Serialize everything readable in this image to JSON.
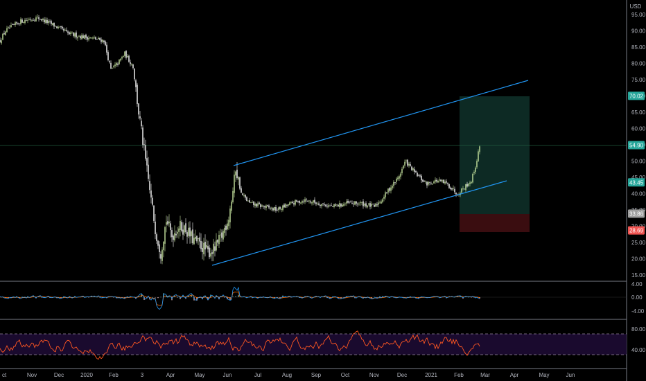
{
  "currency_label": "USD",
  "colors": {
    "background": "#000000",
    "up": "#c8e6a0",
    "down": "#ffffff",
    "channel": "#2196f3",
    "target_zone": "#0d2a24",
    "stop_zone": "#3a0d10",
    "last_price_badge": "#26a69a",
    "target_badge": "#26a69a",
    "entry_badge": "#9e9e9e",
    "stop_badge": "#ef5350",
    "macd_line": "#2196f3",
    "signal_line": "#ff6d00",
    "rsi_line": "#ff5722",
    "rsi_band": "#1a0a2e"
  },
  "price_scale": {
    "labels": [
      "95.00",
      "90.00",
      "85.00",
      "80.00",
      "75.00",
      "70.00",
      "65.00",
      "60.00",
      "55.00",
      "50.00",
      "45.00",
      "40.00",
      "35.00",
      "30.00",
      "25.00",
      "20.00",
      "15.00"
    ],
    "badges": [
      {
        "text": "70.02",
        "kind": "target"
      },
      {
        "text": "54.90",
        "kind": "last"
      },
      {
        "text": "43.45",
        "kind": "last"
      },
      {
        "text": "33.86",
        "kind": "entry"
      },
      {
        "text": "28.69",
        "kind": "stop"
      }
    ]
  },
  "macd_scale": {
    "labels": [
      "4.00",
      "0.00",
      "-4.00"
    ]
  },
  "rsi_scale": {
    "labels": [
      "80.00",
      "40.00"
    ]
  },
  "time_axis": {
    "labels": [
      "ct",
      "Nov",
      "Dec",
      "2020",
      "Feb",
      "3",
      "Apr",
      "May",
      "Jun",
      "Jul",
      "Aug",
      "Sep",
      "Oct",
      "Nov",
      "Dec",
      "2021",
      "Feb",
      "Mar",
      "Apr",
      "May",
      "Jun"
    ]
  },
  "chart_data": {
    "type": "candlestick",
    "ylim": [
      15,
      97
    ],
    "price_path": [
      [
        0,
        87
      ],
      [
        8,
        90
      ],
      [
        30,
        93
      ],
      [
        55,
        94
      ],
      [
        75,
        92
      ],
      [
        100,
        89
      ],
      [
        125,
        88
      ],
      [
        150,
        87
      ],
      [
        160,
        78
      ],
      [
        170,
        80
      ],
      [
        180,
        83
      ],
      [
        192,
        79
      ],
      [
        200,
        65
      ],
      [
        210,
        50
      ],
      [
        218,
        38
      ],
      [
        225,
        28
      ],
      [
        232,
        22
      ],
      [
        240,
        32
      ],
      [
        248,
        27
      ],
      [
        258,
        30
      ],
      [
        268,
        29
      ],
      [
        278,
        26
      ],
      [
        290,
        24
      ],
      [
        300,
        22
      ],
      [
        310,
        23
      ],
      [
        320,
        27
      ],
      [
        330,
        33
      ],
      [
        337,
        42
      ],
      [
        340,
        48
      ],
      [
        348,
        40
      ],
      [
        360,
        37
      ],
      [
        380,
        36
      ],
      [
        400,
        35
      ],
      [
        420,
        37
      ],
      [
        440,
        38
      ],
      [
        460,
        37
      ],
      [
        480,
        36
      ],
      [
        500,
        37
      ],
      [
        520,
        37
      ],
      [
        540,
        36
      ],
      [
        550,
        38
      ],
      [
        560,
        41
      ],
      [
        575,
        45
      ],
      [
        585,
        50
      ],
      [
        600,
        46
      ],
      [
        615,
        43
      ],
      [
        630,
        44
      ],
      [
        645,
        43
      ],
      [
        660,
        40
      ],
      [
        670,
        42
      ],
      [
        680,
        44
      ],
      [
        688,
        50
      ],
      [
        692,
        55
      ]
    ],
    "channel_lines": [
      {
        "x": [
          "2020-06-08",
          "2021-03-20"
        ],
        "y": [
          49.0,
          75.0
        ]
      },
      {
        "x": [
          "2020-05-15",
          "2021-03-10"
        ],
        "y": [
          18.0,
          44.5
        ]
      }
    ],
    "position": {
      "target": 70.02,
      "entry": 33.86,
      "stop": 28.69,
      "last": 54.9
    },
    "horizontal_line": 54.9,
    "indicators": [
      {
        "name": "MACD",
        "ylim": [
          -6,
          5
        ]
      },
      {
        "name": "RSI",
        "levels": [
          70,
          30
        ],
        "ylim": [
          20,
          90
        ]
      }
    ]
  }
}
